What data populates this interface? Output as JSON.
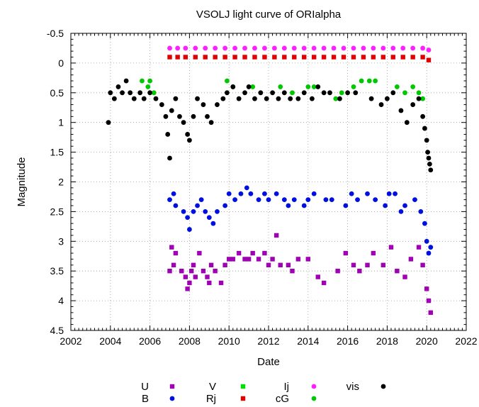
{
  "chart_data": {
    "type": "scatter",
    "title": "VSOLJ light curve of ORIalpha",
    "xlabel": "Date",
    "ylabel": "Magnitude",
    "xlim": [
      2002,
      2022
    ],
    "ylim": [
      -0.5,
      4.5
    ],
    "y_inverted": true,
    "grid": true,
    "legend_position": "bottom",
    "x_ticks": [
      "2002",
      "2004",
      "2006",
      "2008",
      "2010",
      "2012",
      "2014",
      "2016",
      "2018",
      "2020",
      "2022"
    ],
    "y_ticks": [
      "-0.5",
      "0",
      "0.5",
      "1",
      "1.5",
      "2",
      "2.5",
      "3",
      "3.5",
      "4",
      "4.5"
    ],
    "series": [
      {
        "name": "U",
        "color": "#a000b4",
        "marker": "square",
        "points": [
          [
            2007.0,
            3.5
          ],
          [
            2007.1,
            3.1
          ],
          [
            2007.2,
            3.4
          ],
          [
            2007.3,
            3.2
          ],
          [
            2007.6,
            3.5
          ],
          [
            2007.8,
            3.6
          ],
          [
            2007.9,
            3.8
          ],
          [
            2008.0,
            3.7
          ],
          [
            2008.1,
            3.5
          ],
          [
            2008.2,
            3.4
          ],
          [
            2008.3,
            3.6
          ],
          [
            2008.5,
            3.2
          ],
          [
            2008.7,
            3.5
          ],
          [
            2008.9,
            3.6
          ],
          [
            2009.0,
            3.7
          ],
          [
            2009.1,
            3.4
          ],
          [
            2009.3,
            3.5
          ],
          [
            2009.6,
            3.7
          ],
          [
            2009.8,
            3.4
          ],
          [
            2010.0,
            3.3
          ],
          [
            2010.2,
            3.3
          ],
          [
            2010.5,
            3.2
          ],
          [
            2010.8,
            3.3
          ],
          [
            2011.0,
            3.3
          ],
          [
            2011.2,
            3.2
          ],
          [
            2011.5,
            3.3
          ],
          [
            2011.8,
            3.2
          ],
          [
            2012.0,
            3.4
          ],
          [
            2012.2,
            3.3
          ],
          [
            2012.4,
            2.9
          ],
          [
            2012.6,
            3.4
          ],
          [
            2013.0,
            3.4
          ],
          [
            2013.2,
            3.5
          ],
          [
            2013.5,
            3.3
          ],
          [
            2014.0,
            3.3
          ],
          [
            2014.5,
            3.6
          ],
          [
            2014.8,
            3.7
          ],
          [
            2015.5,
            3.5
          ],
          [
            2015.9,
            3.2
          ],
          [
            2016.3,
            3.4
          ],
          [
            2016.6,
            3.5
          ],
          [
            2017.0,
            3.4
          ],
          [
            2017.3,
            3.2
          ],
          [
            2017.8,
            3.4
          ],
          [
            2018.2,
            3.1
          ],
          [
            2018.5,
            3.5
          ],
          [
            2018.9,
            3.6
          ],
          [
            2019.2,
            3.3
          ],
          [
            2019.6,
            3.1
          ],
          [
            2019.8,
            3.4
          ],
          [
            2020.0,
            3.8
          ],
          [
            2020.1,
            4.0
          ],
          [
            2020.2,
            4.2
          ]
        ]
      },
      {
        "name": "B",
        "color": "#0010e0",
        "marker": "circle",
        "points": [
          [
            2007.0,
            2.3
          ],
          [
            2007.2,
            2.2
          ],
          [
            2007.3,
            2.4
          ],
          [
            2007.7,
            2.5
          ],
          [
            2007.9,
            2.6
          ],
          [
            2008.0,
            2.8
          ],
          [
            2008.2,
            2.5
          ],
          [
            2008.4,
            2.4
          ],
          [
            2008.6,
            2.3
          ],
          [
            2008.8,
            2.5
          ],
          [
            2009.0,
            2.6
          ],
          [
            2009.2,
            2.7
          ],
          [
            2009.4,
            2.5
          ],
          [
            2009.8,
            2.4
          ],
          [
            2010.0,
            2.2
          ],
          [
            2010.3,
            2.3
          ],
          [
            2010.6,
            2.2
          ],
          [
            2010.9,
            2.1
          ],
          [
            2011.1,
            2.2
          ],
          [
            2011.5,
            2.3
          ],
          [
            2011.8,
            2.2
          ],
          [
            2012.0,
            2.3
          ],
          [
            2012.4,
            2.2
          ],
          [
            2012.8,
            2.3
          ],
          [
            2013.0,
            2.4
          ],
          [
            2013.3,
            2.3
          ],
          [
            2013.8,
            2.4
          ],
          [
            2014.0,
            2.3
          ],
          [
            2014.3,
            2.2
          ],
          [
            2014.9,
            2.3
          ],
          [
            2015.2,
            2.3
          ],
          [
            2015.9,
            2.4
          ],
          [
            2016.2,
            2.2
          ],
          [
            2016.5,
            2.3
          ],
          [
            2017.0,
            2.2
          ],
          [
            2017.4,
            2.3
          ],
          [
            2017.9,
            2.4
          ],
          [
            2018.1,
            2.2
          ],
          [
            2018.4,
            2.2
          ],
          [
            2018.7,
            2.5
          ],
          [
            2018.9,
            2.4
          ],
          [
            2019.4,
            2.3
          ],
          [
            2019.7,
            2.5
          ],
          [
            2019.9,
            2.7
          ],
          [
            2020.0,
            3.0
          ],
          [
            2020.1,
            3.2
          ],
          [
            2020.2,
            3.1
          ]
        ]
      },
      {
        "name": "V",
        "color": "#00e000",
        "marker": "square",
        "points": []
      },
      {
        "name": "Rj",
        "color": "#e00000",
        "marker": "square",
        "points": [
          [
            2007.0,
            -0.1
          ],
          [
            2007.4,
            -0.1
          ],
          [
            2007.8,
            -0.1
          ],
          [
            2008.3,
            -0.1
          ],
          [
            2008.8,
            -0.1
          ],
          [
            2009.3,
            -0.1
          ],
          [
            2009.8,
            -0.1
          ],
          [
            2010.3,
            -0.1
          ],
          [
            2010.8,
            -0.1
          ],
          [
            2011.3,
            -0.1
          ],
          [
            2011.8,
            -0.1
          ],
          [
            2012.3,
            -0.1
          ],
          [
            2012.8,
            -0.1
          ],
          [
            2013.3,
            -0.1
          ],
          [
            2013.8,
            -0.1
          ],
          [
            2014.3,
            -0.1
          ],
          [
            2014.8,
            -0.1
          ],
          [
            2015.3,
            -0.1
          ],
          [
            2015.8,
            -0.1
          ],
          [
            2016.3,
            -0.1
          ],
          [
            2016.8,
            -0.1
          ],
          [
            2017.3,
            -0.1
          ],
          [
            2017.8,
            -0.1
          ],
          [
            2018.3,
            -0.1
          ],
          [
            2018.8,
            -0.1
          ],
          [
            2019.3,
            -0.1
          ],
          [
            2019.8,
            -0.1
          ],
          [
            2020.1,
            -0.05
          ]
        ]
      },
      {
        "name": "cG",
        "color": "#00c800",
        "marker": "circle",
        "points": [
          [
            2005.6,
            0.3
          ],
          [
            2005.9,
            0.4
          ],
          [
            2006.0,
            0.3
          ],
          [
            2006.2,
            0.5
          ],
          [
            2009.9,
            0.3
          ],
          [
            2010.2,
            0.4
          ],
          [
            2011.2,
            0.4
          ],
          [
            2012.6,
            0.4
          ],
          [
            2013.2,
            0.5
          ],
          [
            2014.0,
            0.4
          ],
          [
            2014.3,
            0.4
          ],
          [
            2015.4,
            0.6
          ],
          [
            2015.7,
            0.5
          ],
          [
            2016.3,
            0.4
          ],
          [
            2016.7,
            0.3
          ],
          [
            2017.1,
            0.3
          ],
          [
            2017.4,
            0.3
          ],
          [
            2018.5,
            0.4
          ],
          [
            2018.9,
            0.5
          ],
          [
            2019.3,
            0.4
          ],
          [
            2019.6,
            0.5
          ],
          [
            2019.8,
            0.6
          ]
        ]
      },
      {
        "name": "Ij",
        "color": "#ff20ff",
        "marker": "circle",
        "points": [
          [
            2007.0,
            -0.25
          ],
          [
            2007.4,
            -0.25
          ],
          [
            2007.8,
            -0.25
          ],
          [
            2008.3,
            -0.25
          ],
          [
            2008.8,
            -0.25
          ],
          [
            2009.3,
            -0.25
          ],
          [
            2009.8,
            -0.25
          ],
          [
            2010.3,
            -0.25
          ],
          [
            2010.8,
            -0.25
          ],
          [
            2011.3,
            -0.25
          ],
          [
            2011.8,
            -0.25
          ],
          [
            2012.3,
            -0.25
          ],
          [
            2012.8,
            -0.25
          ],
          [
            2013.3,
            -0.25
          ],
          [
            2013.8,
            -0.25
          ],
          [
            2014.3,
            -0.25
          ],
          [
            2014.8,
            -0.25
          ],
          [
            2015.3,
            -0.25
          ],
          [
            2015.8,
            -0.25
          ],
          [
            2016.3,
            -0.25
          ],
          [
            2016.8,
            -0.25
          ],
          [
            2017.3,
            -0.25
          ],
          [
            2017.8,
            -0.25
          ],
          [
            2018.3,
            -0.25
          ],
          [
            2018.8,
            -0.25
          ],
          [
            2019.3,
            -0.25
          ],
          [
            2019.8,
            -0.25
          ],
          [
            2020.1,
            -0.22
          ]
        ]
      },
      {
        "name": "vis",
        "color": "#000000",
        "marker": "circle",
        "points": [
          [
            2003.9,
            1.0
          ],
          [
            2004.0,
            0.5
          ],
          [
            2004.2,
            0.6
          ],
          [
            2004.4,
            0.4
          ],
          [
            2004.6,
            0.5
          ],
          [
            2004.8,
            0.3
          ],
          [
            2005.0,
            0.5
          ],
          [
            2005.2,
            0.6
          ],
          [
            2005.5,
            0.5
          ],
          [
            2005.7,
            0.6
          ],
          [
            2006.0,
            0.5
          ],
          [
            2006.3,
            0.6
          ],
          [
            2006.6,
            0.7
          ],
          [
            2006.8,
            0.9
          ],
          [
            2006.9,
            1.2
          ],
          [
            2007.0,
            1.6
          ],
          [
            2007.1,
            0.8
          ],
          [
            2007.3,
            0.6
          ],
          [
            2007.5,
            0.9
          ],
          [
            2007.7,
            1.0
          ],
          [
            2007.9,
            1.2
          ],
          [
            2008.0,
            1.3
          ],
          [
            2008.2,
            0.9
          ],
          [
            2008.4,
            0.6
          ],
          [
            2008.7,
            0.7
          ],
          [
            2008.9,
            0.9
          ],
          [
            2009.1,
            1.0
          ],
          [
            2009.4,
            0.7
          ],
          [
            2009.7,
            0.6
          ],
          [
            2009.9,
            0.5
          ],
          [
            2010.2,
            0.4
          ],
          [
            2010.5,
            0.6
          ],
          [
            2010.8,
            0.5
          ],
          [
            2011.0,
            0.4
          ],
          [
            2011.3,
            0.6
          ],
          [
            2011.6,
            0.5
          ],
          [
            2011.9,
            0.6
          ],
          [
            2012.2,
            0.5
          ],
          [
            2012.5,
            0.6
          ],
          [
            2012.8,
            0.5
          ],
          [
            2013.1,
            0.6
          ],
          [
            2013.5,
            0.6
          ],
          [
            2013.8,
            0.5
          ],
          [
            2014.2,
            0.6
          ],
          [
            2014.5,
            0.4
          ],
          [
            2014.8,
            0.5
          ],
          [
            2015.1,
            0.5
          ],
          [
            2015.6,
            0.6
          ],
          [
            2016.0,
            0.5
          ],
          [
            2016.4,
            0.5
          ],
          [
            2017.2,
            0.6
          ],
          [
            2017.7,
            0.7
          ],
          [
            2018.0,
            0.6
          ],
          [
            2018.3,
            0.5
          ],
          [
            2018.7,
            0.8
          ],
          [
            2019.0,
            1.0
          ],
          [
            2019.3,
            0.7
          ],
          [
            2019.6,
            0.6
          ],
          [
            2019.8,
            0.9
          ],
          [
            2019.9,
            1.1
          ],
          [
            2020.0,
            1.3
          ],
          [
            2020.05,
            1.5
          ],
          [
            2020.1,
            1.6
          ],
          [
            2020.15,
            1.7
          ],
          [
            2020.2,
            1.8
          ]
        ]
      }
    ]
  }
}
